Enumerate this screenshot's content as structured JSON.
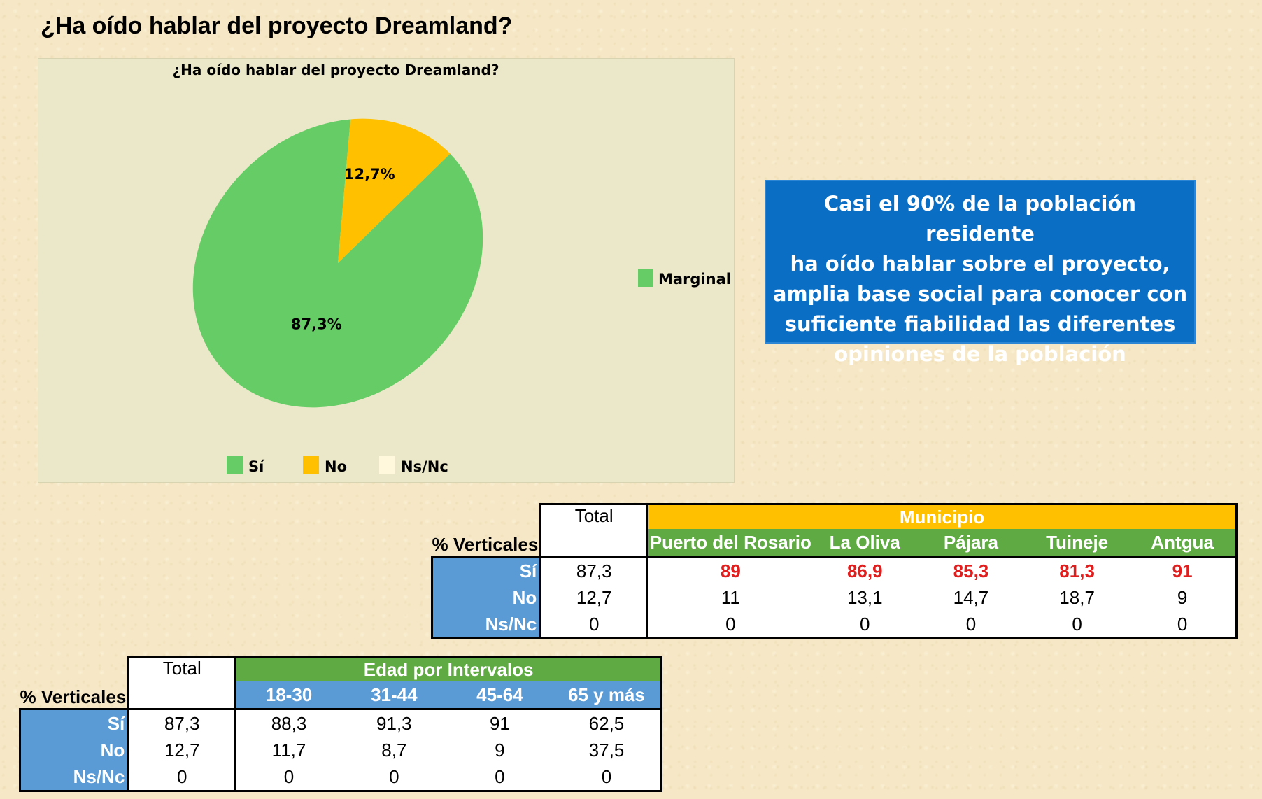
{
  "page_title": "¿Ha oído hablar del proyecto Dreamland?",
  "callout_lines": [
    "Casi el 90% de la población residente",
    "ha oído hablar sobre el proyecto,",
    "amplia base social para conocer con",
    "suficiente fiabilidad las diferentes",
    "opiniones de la población"
  ],
  "chart_data": {
    "type": "pie",
    "title": "¿Ha oído hablar del proyecto Dreamland?",
    "slices": [
      {
        "name": "Sí",
        "value": 87.3,
        "label": "87,3%",
        "color": "#66cc66"
      },
      {
        "name": "No",
        "value": 12.7,
        "label": "12,7%",
        "color": "#ffc000"
      },
      {
        "name": "Ns/Nc",
        "value": 0,
        "label": "",
        "color": "#fff8dc"
      }
    ],
    "legend": [
      "Sí",
      "No",
      "Ns/Nc"
    ],
    "legend_placement": "bottom",
    "side_legend": {
      "label": "Marginal",
      "color": "#66cc66",
      "placement": "right"
    }
  },
  "table_municipio": {
    "corner": "% Verticales",
    "total_header": "Total",
    "group_header": "Municipio",
    "columns": [
      "Puerto del Rosario",
      "La Oliva",
      "Pájara",
      "Tuineje",
      "Antgua"
    ],
    "rows": [
      {
        "label": "Sí",
        "total": "87,3",
        "values": [
          "89",
          "86,9",
          "85,3",
          "81,3",
          "91"
        ]
      },
      {
        "label": "No",
        "total": "12,7",
        "values": [
          "11",
          "13,1",
          "14,7",
          "18,7",
          "9"
        ]
      },
      {
        "label": "Ns/Nc",
        "total": "0",
        "values": [
          "0",
          "0",
          "0",
          "0",
          "0"
        ]
      }
    ]
  },
  "table_edad": {
    "corner": "% Verticales",
    "total_header": "Total",
    "group_header": "Edad por Intervalos",
    "columns": [
      "18-30",
      "31-44",
      "45-64",
      "65 y más"
    ],
    "rows": [
      {
        "label": "Sí",
        "total": "87,3",
        "values": [
          "88,3",
          "91,3",
          "91",
          "62,5"
        ]
      },
      {
        "label": "No",
        "total": "12,7",
        "values": [
          "11,7",
          "8,7",
          "9",
          "37,5"
        ]
      },
      {
        "label": "Ns/Nc",
        "total": "0",
        "values": [
          "0",
          "0",
          "0",
          "0"
        ]
      }
    ]
  }
}
